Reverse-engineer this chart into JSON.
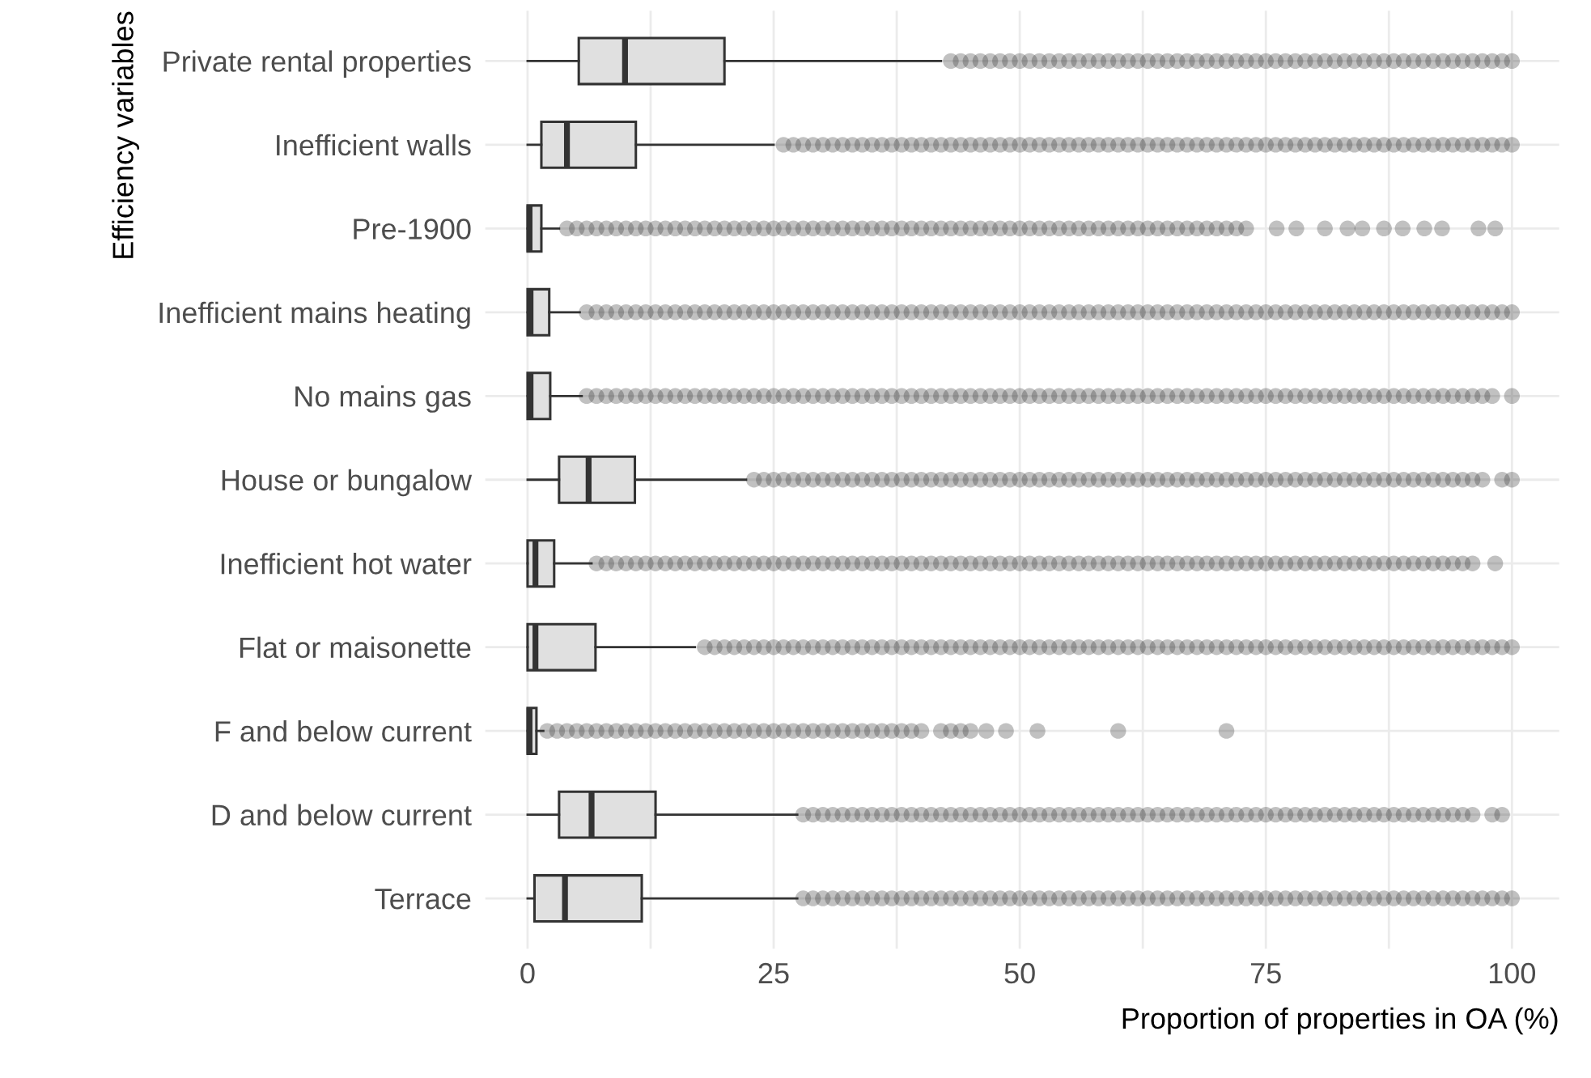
{
  "chart_data": {
    "type": "box",
    "orientation": "horizontal",
    "xlabel": "Proportion of properties in OA (%)",
    "ylabel": "Efficiency variables",
    "categories": [
      "Private rental properties",
      "Inefficient walls",
      "Pre-1900",
      "Inefficient mains heating",
      "No mains gas",
      "House or bungalow",
      "Inefficient hot water",
      "Flat or maisonette",
      "F and below current",
      "D and below current",
      "Terrace"
    ],
    "xlim": [
      -4.3,
      104.8
    ],
    "xticks": [
      0,
      {
        "value": 12.5,
        "label": null
      },
      25,
      {
        "value": 37.5,
        "label": null
      },
      50,
      {
        "value": 62.5,
        "label": null
      },
      75,
      {
        "value": 87.5,
        "label": null
      },
      100
    ],
    "grid": true,
    "boxes": [
      {
        "low": 0,
        "q1": 5.2,
        "median": 9.9,
        "q3": 20,
        "high": 42,
        "outliers": [
          43,
          44,
          45,
          46,
          47,
          48,
          49,
          50,
          51,
          52,
          53,
          54,
          55,
          56,
          57,
          58,
          59,
          60,
          61,
          62,
          63,
          64,
          65,
          66,
          67,
          68,
          69,
          70,
          71,
          72,
          73,
          74,
          75,
          76,
          77,
          78,
          79,
          80,
          81,
          82,
          83,
          84,
          85,
          86,
          87,
          88,
          89,
          90,
          91,
          92,
          93,
          94,
          95,
          96,
          97,
          98,
          99,
          100
        ]
      },
      {
        "low": 0,
        "q1": 1.4,
        "median": 4.0,
        "q3": 11,
        "high": 25,
        "outliers": [
          26,
          27,
          28,
          29,
          30,
          31,
          32,
          33,
          34,
          35,
          36,
          37,
          38,
          39,
          40,
          41,
          42,
          43,
          44,
          45,
          46,
          47,
          48,
          49,
          50,
          51,
          52,
          53,
          54,
          55,
          56,
          57,
          58,
          59,
          60,
          61,
          62,
          63,
          64,
          65,
          66,
          67,
          68,
          69,
          70,
          71,
          72,
          73,
          74,
          75,
          76,
          77,
          78,
          79,
          80,
          81,
          82,
          83,
          84,
          85,
          86,
          87,
          88,
          89,
          90,
          91,
          92,
          93,
          94,
          95,
          96,
          97,
          98,
          99,
          100
        ]
      },
      {
        "low": 0,
        "q1": 0,
        "median": 0.2,
        "q3": 1.4,
        "high": 3.2,
        "outliers": [
          4,
          5,
          6,
          7,
          8,
          9,
          10,
          11,
          12,
          13,
          14,
          15,
          16,
          17,
          18,
          19,
          20,
          21,
          22,
          23,
          24,
          25,
          26,
          27,
          28,
          29,
          30,
          31,
          32,
          33,
          34,
          35,
          36,
          37,
          38,
          39,
          40,
          41,
          42,
          43,
          44,
          45,
          46,
          47,
          48,
          49,
          50,
          51,
          52,
          53,
          54,
          55,
          56,
          57,
          58,
          59,
          60,
          61,
          62,
          63,
          64,
          65,
          66,
          67,
          68,
          69,
          70,
          71,
          72,
          73,
          76.1,
          78.1,
          81,
          83.3,
          84.8,
          87,
          88.9,
          91.1,
          92.9,
          96.6,
          98.3
        ]
      },
      {
        "low": 0,
        "q1": 0,
        "median": 0.3,
        "q3": 2.2,
        "high": 5.3,
        "outliers": [
          6,
          7,
          8,
          9,
          10,
          11,
          12,
          13,
          14,
          15,
          16,
          17,
          18,
          19,
          20,
          21,
          22,
          23,
          24,
          25,
          26,
          27,
          28,
          29,
          30,
          31,
          32,
          33,
          34,
          35,
          36,
          37,
          38,
          39,
          40,
          41,
          42,
          43,
          44,
          45,
          46,
          47,
          48,
          49,
          50,
          51,
          52,
          53,
          54,
          55,
          56,
          57,
          58,
          59,
          60,
          61,
          62,
          63,
          64,
          65,
          66,
          67,
          68,
          69,
          70,
          71,
          72,
          73,
          74,
          75,
          76,
          77,
          78,
          79,
          80,
          81,
          82,
          83,
          84,
          85,
          86,
          87,
          88,
          89,
          90,
          91,
          92,
          93,
          94,
          95,
          96,
          97,
          98,
          99,
          100
        ]
      },
      {
        "low": 0,
        "q1": 0,
        "median": 0.3,
        "q3": 2.3,
        "high": 5.5,
        "outliers": [
          6,
          7,
          8,
          9,
          10,
          11,
          12,
          13,
          14,
          15,
          16,
          17,
          18,
          19,
          20,
          21,
          22,
          23,
          24,
          25,
          26,
          27,
          28,
          29,
          30,
          31,
          32,
          33,
          34,
          35,
          36,
          37,
          38,
          39,
          40,
          41,
          42,
          43,
          44,
          45,
          46,
          47,
          48,
          49,
          50,
          51,
          52,
          53,
          54,
          55,
          56,
          57,
          58,
          59,
          60,
          61,
          62,
          63,
          64,
          65,
          66,
          67,
          68,
          69,
          70,
          71,
          72,
          73,
          74,
          75,
          76,
          77,
          78,
          79,
          80,
          81,
          82,
          83,
          84,
          85,
          86,
          87,
          88,
          89,
          90,
          91,
          92,
          93,
          94,
          95,
          96,
          97,
          98,
          100
        ]
      },
      {
        "low": 0,
        "q1": 3.2,
        "median": 6.2,
        "q3": 10.9,
        "high": 22.2,
        "outliers": [
          23,
          24,
          25,
          26,
          27,
          28,
          29,
          30,
          31,
          32,
          33,
          34,
          35,
          36,
          37,
          38,
          39,
          40,
          41,
          42,
          43,
          44,
          45,
          46,
          47,
          48,
          49,
          50,
          51,
          52,
          53,
          54,
          55,
          56,
          57,
          58,
          59,
          60,
          61,
          62,
          63,
          64,
          65,
          66,
          67,
          68,
          69,
          70,
          71,
          72,
          73,
          74,
          75,
          76,
          77,
          78,
          79,
          80,
          81,
          82,
          83,
          84,
          85,
          86,
          87,
          88,
          89,
          90,
          91,
          92,
          93,
          94,
          95,
          96,
          97,
          99,
          100
        ]
      },
      {
        "low": 0,
        "q1": 0,
        "median": 0.8,
        "q3": 2.7,
        "high": 6.5,
        "outliers": [
          7,
          8,
          9,
          10,
          11,
          12,
          13,
          14,
          15,
          16,
          17,
          18,
          19,
          20,
          21,
          22,
          23,
          24,
          25,
          26,
          27,
          28,
          29,
          30,
          31,
          32,
          33,
          34,
          35,
          36,
          37,
          38,
          39,
          40,
          41,
          42,
          43,
          44,
          45,
          46,
          47,
          48,
          49,
          50,
          51,
          52,
          53,
          54,
          55,
          56,
          57,
          58,
          59,
          60,
          61,
          62,
          63,
          64,
          65,
          66,
          67,
          68,
          69,
          70,
          71,
          72,
          73,
          74,
          75,
          76,
          77,
          78,
          79,
          80,
          81,
          82,
          83,
          84,
          85,
          86,
          87,
          88,
          89,
          90,
          91,
          92,
          93,
          94,
          95,
          96,
          98.3
        ]
      },
      {
        "low": 0,
        "q1": 0,
        "median": 0.8,
        "q3": 6.9,
        "high": 17,
        "outliers": [
          18,
          19,
          20,
          21,
          22,
          23,
          24,
          25,
          26,
          27,
          28,
          29,
          30,
          31,
          32,
          33,
          34,
          35,
          36,
          37,
          38,
          39,
          40,
          41,
          42,
          43,
          44,
          45,
          46,
          47,
          48,
          49,
          50,
          51,
          52,
          53,
          54,
          55,
          56,
          57,
          58,
          59,
          60,
          61,
          62,
          63,
          64,
          65,
          66,
          67,
          68,
          69,
          70,
          71,
          72,
          73,
          74,
          75,
          76,
          77,
          78,
          79,
          80,
          81,
          82,
          83,
          84,
          85,
          86,
          87,
          88,
          89,
          90,
          91,
          92,
          93,
          94,
          95,
          96,
          97,
          98,
          99,
          100
        ]
      },
      {
        "low": 0,
        "q1": 0,
        "median": 0.2,
        "q3": 0.9,
        "high": 1.6,
        "outliers": [
          2,
          3,
          4,
          5,
          6,
          7,
          8,
          9,
          10,
          11,
          12,
          13,
          14,
          15,
          16,
          17,
          18,
          19,
          20,
          21,
          22,
          23,
          24,
          25,
          26,
          27,
          28,
          29,
          30,
          31,
          32,
          33,
          34,
          35,
          36,
          37,
          38,
          39,
          40,
          42,
          43,
          44,
          45,
          46.6,
          48.6,
          51.8,
          60,
          71
        ]
      },
      {
        "low": 0,
        "q1": 3.2,
        "median": 6.5,
        "q3": 13.0,
        "high": 27.4,
        "outliers": [
          28,
          29,
          30,
          31,
          32,
          33,
          34,
          35,
          36,
          37,
          38,
          39,
          40,
          41,
          42,
          43,
          44,
          45,
          46,
          47,
          48,
          49,
          50,
          51,
          52,
          53,
          54,
          55,
          56,
          57,
          58,
          59,
          60,
          61,
          62,
          63,
          64,
          65,
          66,
          67,
          68,
          69,
          70,
          71,
          72,
          73,
          74,
          75,
          76,
          77,
          78,
          79,
          80,
          81,
          82,
          83,
          84,
          85,
          86,
          87,
          88,
          89,
          90,
          91,
          92,
          93,
          94,
          95,
          96,
          98,
          99
        ]
      },
      {
        "low": 0,
        "q1": 0.7,
        "median": 3.8,
        "q3": 11.6,
        "high": 27.4,
        "outliers": [
          28,
          29,
          30,
          31,
          32,
          33,
          34,
          35,
          36,
          37,
          38,
          39,
          40,
          41,
          42,
          43,
          44,
          45,
          46,
          47,
          48,
          49,
          50,
          51,
          52,
          53,
          54,
          55,
          56,
          57,
          58,
          59,
          60,
          61,
          62,
          63,
          64,
          65,
          66,
          67,
          68,
          69,
          70,
          71,
          72,
          73,
          74,
          75,
          76,
          77,
          78,
          79,
          80,
          81,
          82,
          83,
          84,
          85,
          86,
          87,
          88,
          89,
          90,
          91,
          92,
          93,
          94,
          95,
          96,
          97,
          98,
          99,
          100
        ]
      }
    ]
  }
}
